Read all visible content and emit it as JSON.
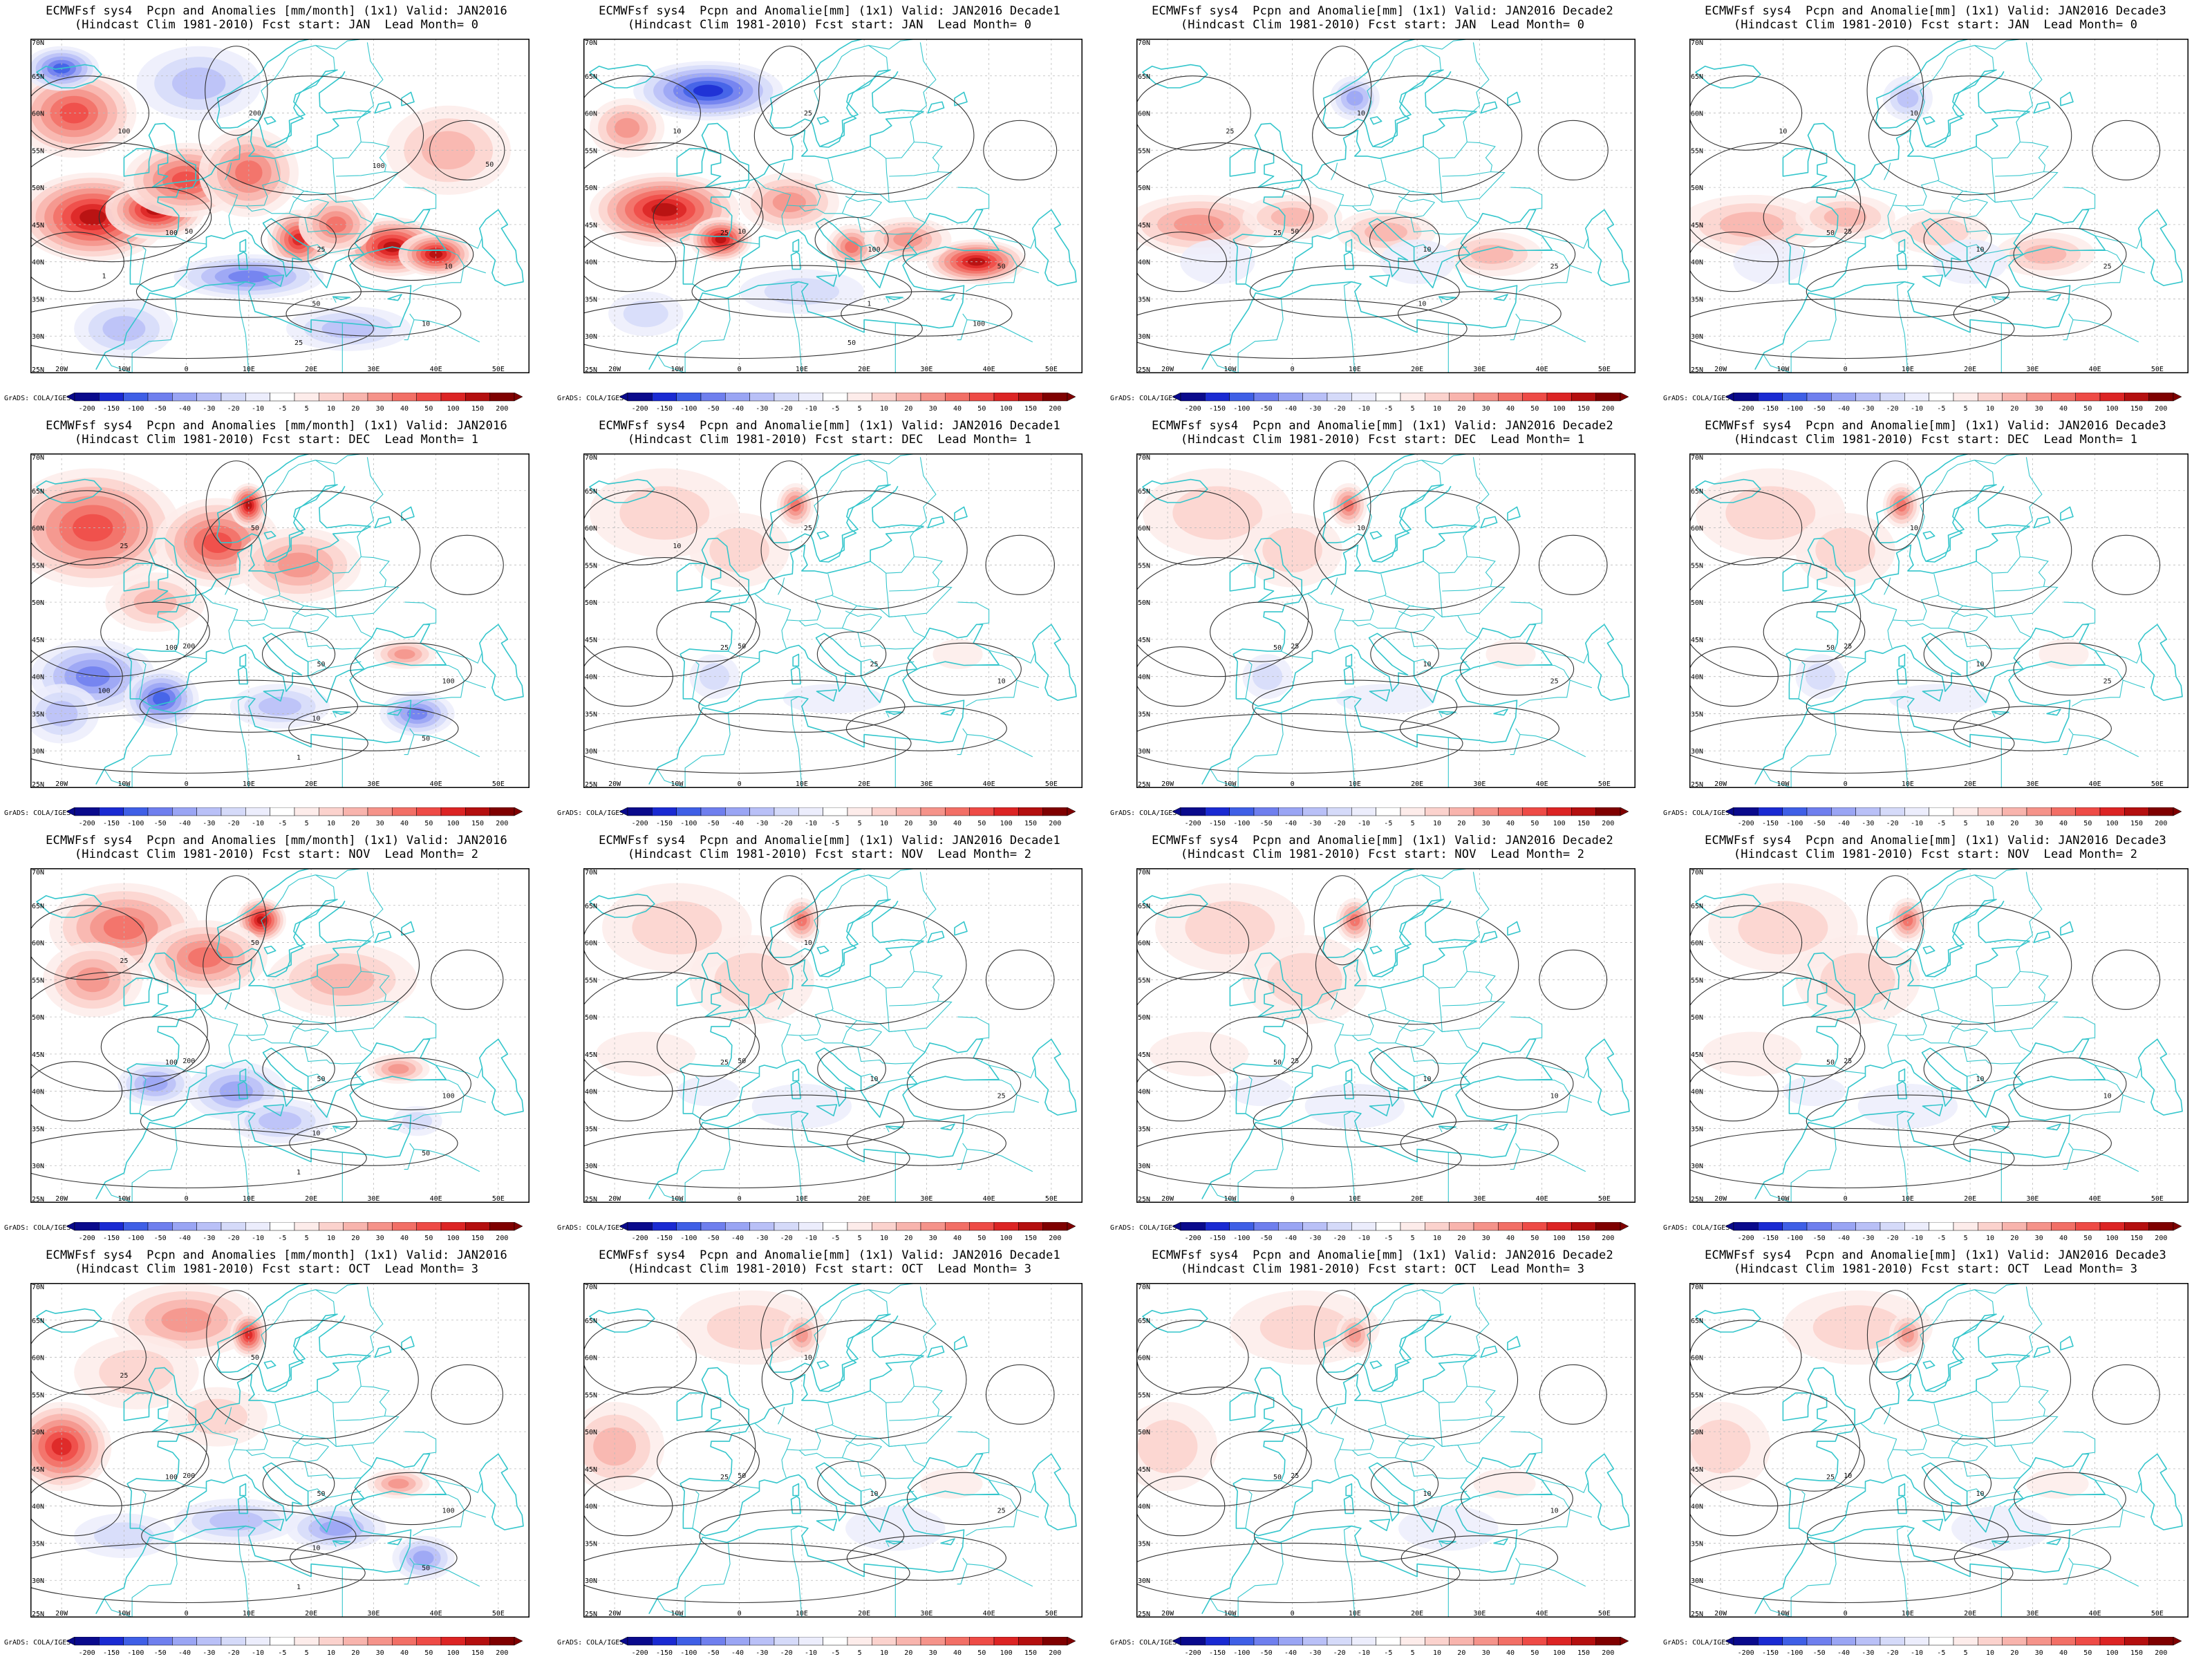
{
  "figure": {
    "credit": "GrADS: COLA/IGES",
    "colorbar_ticks": [
      "-200",
      "-150",
      "-100",
      "-50",
      "-40",
      "-30",
      "-20",
      "-10",
      "-5",
      "5",
      "10",
      "20",
      "30",
      "40",
      "50",
      "100",
      "150",
      "200"
    ],
    "colorbar_colors": [
      "#0a0a8c",
      "#1a2ad2",
      "#3f5fe6",
      "#6f7fee",
      "#9aa5f4",
      "#b9c0f7",
      "#d5daf9",
      "#ecedfc",
      "#ffffff",
      "#fdecea",
      "#fbd2cd",
      "#f8b4ad",
      "#f5938a",
      "#f26f66",
      "#ee4b46",
      "#dc2424",
      "#b40f0f",
      "#7f0000"
    ],
    "lat_labels": [
      "70N",
      "65N",
      "60N",
      "55N",
      "50N",
      "45N",
      "40N",
      "35N",
      "30N",
      "25N"
    ],
    "lon_labels": [
      "20W",
      "10W",
      "0",
      "10E",
      "20E",
      "30E",
      "40E",
      "50E"
    ],
    "coast_color": "#35c6cc",
    "contour_color": "#333333"
  },
  "panels": [
    {
      "title1": "ECMWFsf sys4  Pcpn and Anomalies [mm/month] (1x1) Valid: JAN2016",
      "title2": "(Hindcast Clim 1981-2010) Fcst start: JAN  Lead Month= 0",
      "intensity": 1.0,
      "contour_labels": [
        "100",
        "50",
        "25",
        "10",
        "200",
        "100",
        "50",
        "25",
        "10",
        "1",
        "50",
        "100"
      ]
    },
    {
      "title1": "ECMWFsf sys4  Pcpn and Anomalie[mm] (1x1) Valid: JAN2016 Decade1",
      "title2": "(Hindcast Clim 1981-2010) Fcst start: JAN  Lead Month= 0",
      "intensity": 0.85,
      "contour_labels": [
        "25",
        "10",
        "100",
        "50",
        "25",
        "10",
        "1",
        "50",
        "100"
      ]
    },
    {
      "title1": "ECMWFsf sys4  Pcpn and Anomalie[mm] (1x1) Valid: JAN2016 Decade2",
      "title2": "(Hindcast Clim 1981-2010) Fcst start: JAN  Lead Month= 0",
      "intensity": 0.55,
      "contour_labels": [
        "25",
        "50",
        "10",
        "25",
        "10",
        "25",
        "10"
      ]
    },
    {
      "title1": "ECMWFsf sys4  Pcpn and Anomalie[mm] (1x1) Valid: JAN2016 Decade3",
      "title2": "(Hindcast Clim 1981-2010) Fcst start: JAN  Lead Month= 0",
      "intensity": 0.35,
      "contour_labels": [
        "50",
        "25",
        "10",
        "25",
        "10",
        "10"
      ]
    },
    {
      "title1": "ECMWFsf sys4  Pcpn and Anomalies [mm/month] (1x1) Valid: JAN2016",
      "title2": "(Hindcast Clim 1981-2010) Fcst start: DEC  Lead Month= 1",
      "intensity": 0.8,
      "contour_labels": [
        "100",
        "200",
        "50",
        "100",
        "50",
        "25",
        "10",
        "1",
        "50",
        "100"
      ]
    },
    {
      "title1": "ECMWFsf sys4  Pcpn and Anomalie[mm] (1x1) Valid: JAN2016 Decade1",
      "title2": "(Hindcast Clim 1981-2010) Fcst start: DEC  Lead Month= 1",
      "intensity": 0.45,
      "contour_labels": [
        "25",
        "50",
        "25",
        "10",
        "25",
        "10"
      ]
    },
    {
      "title1": "ECMWFsf sys4  Pcpn and Anomalie[mm] (1x1) Valid: JAN2016 Decade2",
      "title2": "(Hindcast Clim 1981-2010) Fcst start: DEC  Lead Month= 1",
      "intensity": 0.4,
      "contour_labels": [
        "50",
        "25",
        "10",
        "25",
        "10"
      ]
    },
    {
      "title1": "ECMWFsf sys4  Pcpn and Anomalie[mm] (1x1) Valid: JAN2016 Decade3",
      "title2": "(Hindcast Clim 1981-2010) Fcst start: DEC  Lead Month= 1",
      "intensity": 0.35,
      "contour_labels": [
        "50",
        "25",
        "10",
        "25",
        "10"
      ]
    },
    {
      "title1": "ECMWFsf sys4  Pcpn and Anomalies [mm/month] (1x1) Valid: JAN2016",
      "title2": "(Hindcast Clim 1981-2010) Fcst start: NOV  Lead Month= 2",
      "intensity": 0.75,
      "contour_labels": [
        "100",
        "200",
        "50",
        "100",
        "50",
        "25",
        "10",
        "1",
        "50"
      ]
    },
    {
      "title1": "ECMWFsf sys4  Pcpn and Anomalie[mm] (1x1) Valid: JAN2016 Decade1",
      "title2": "(Hindcast Clim 1981-2010) Fcst start: NOV  Lead Month= 2",
      "intensity": 0.4,
      "contour_labels": [
        "25",
        "50",
        "10",
        "25",
        "10"
      ]
    },
    {
      "title1": "ECMWFsf sys4  Pcpn and Anomalie[mm] (1x1) Valid: JAN2016 Decade2",
      "title2": "(Hindcast Clim 1981-2010) Fcst start: NOV  Lead Month= 2",
      "intensity": 0.35,
      "contour_labels": [
        "50",
        "25",
        "10",
        "10"
      ]
    },
    {
      "title1": "ECMWFsf sys4  Pcpn and Anomalie[mm] (1x1) Valid: JAN2016 Decade3",
      "title2": "(Hindcast Clim 1981-2010) Fcst start: NOV  Lead Month= 2",
      "intensity": 0.35,
      "contour_labels": [
        "50",
        "25",
        "10",
        "10"
      ]
    },
    {
      "title1": "ECMWFsf sys4  Pcpn and Anomalies [mm/month] (1x1) Valid: JAN2016",
      "title2": "(Hindcast Clim 1981-2010) Fcst start: OCT  Lead Month= 3",
      "intensity": 0.7,
      "contour_labels": [
        "100",
        "200",
        "50",
        "100",
        "50",
        "25",
        "10",
        "1",
        "50"
      ]
    },
    {
      "title1": "ECMWFsf sys4  Pcpn and Anomalie[mm] (1x1) Valid: JAN2016 Decade1",
      "title2": "(Hindcast Clim 1981-2010) Fcst start: OCT  Lead Month= 3",
      "intensity": 0.4,
      "contour_labels": [
        "25",
        "50",
        "10",
        "25",
        "10"
      ]
    },
    {
      "title1": "ECMWFsf sys4  Pcpn and Anomalie[mm] (1x1) Valid: JAN2016 Decade2",
      "title2": "(Hindcast Clim 1981-2010) Fcst start: OCT  Lead Month= 3",
      "intensity": 0.3,
      "contour_labels": [
        "50",
        "25",
        "10",
        "10"
      ]
    },
    {
      "title1": "ECMWFsf sys4  Pcpn and Anomalie[mm] (1x1) Valid: JAN2016 Decade3",
      "title2": "(Hindcast Clim 1981-2010) Fcst start: OCT  Lead Month= 3",
      "intensity": 0.3,
      "contour_labels": [
        "25",
        "10",
        "10"
      ]
    }
  ]
}
